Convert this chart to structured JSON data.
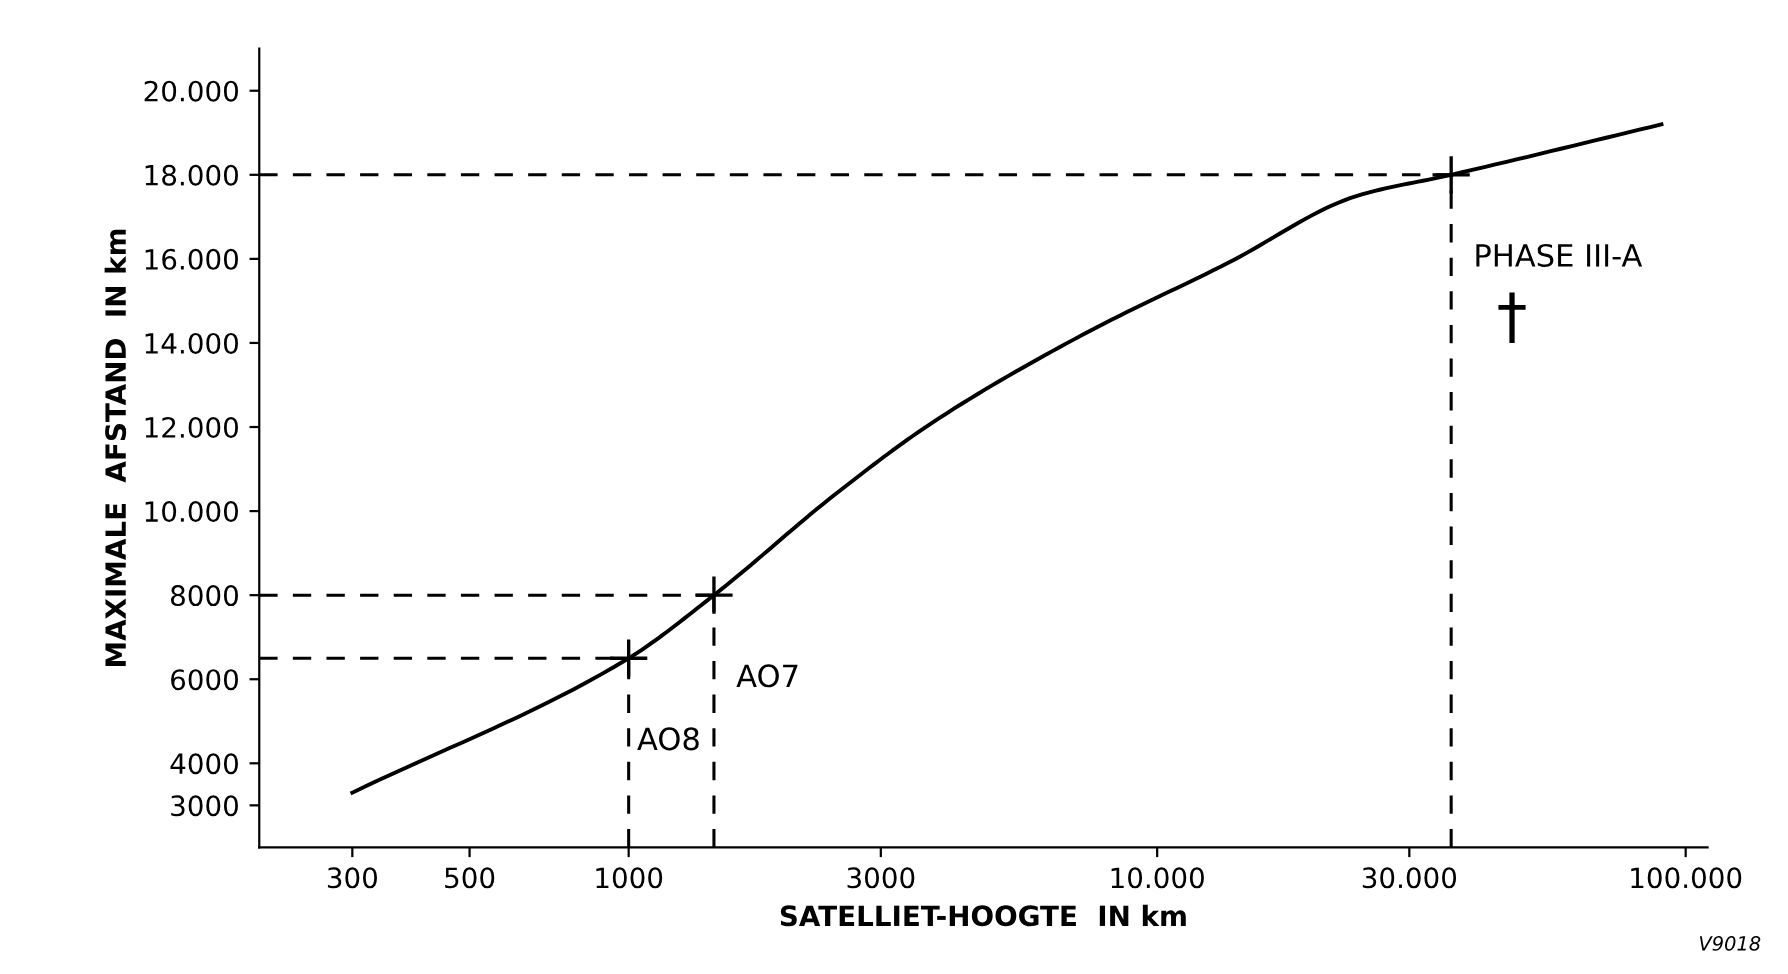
{
  "chart_data": {
    "type": "line",
    "xlabel": "SATELLIET-HOOGTE  IN km",
    "ylabel": "MAXIMALE  AFSTAND  IN km",
    "log": "x",
    "grid": false,
    "legend": false,
    "marker": "none",
    "line_style": "solid",
    "xlim": [
      200,
      110000
    ],
    "ylim": [
      2000,
      21000
    ],
    "xticks": [
      300,
      500,
      1000,
      3000,
      {
        "value": 10000,
        "label": "10.000"
      },
      {
        "value": 30000,
        "label": "30.000"
      },
      {
        "value": 100000,
        "label": "100.000"
      }
    ],
    "yticks": [
      3000,
      4000,
      6000,
      8000,
      {
        "value": 10000,
        "label": "10.000"
      },
      {
        "value": 12000,
        "label": "12.000"
      },
      {
        "value": 14000,
        "label": "14.000"
      },
      {
        "value": 16000,
        "label": "16.000"
      },
      {
        "value": 18000,
        "label": "18.000"
      },
      {
        "value": 20000,
        "label": "20.000"
      }
    ],
    "series": [
      {
        "color": "#000000",
        "x": [
          300,
          1000,
          1450,
          2460,
          3750,
          7240,
          13600,
          23900,
          36000,
          90000
        ],
        "values": [
          3300,
          6500,
          8000,
          10400,
          12100,
          14200,
          15900,
          17500,
          18000,
          19200
        ]
      },
      {
        "type": "scatter",
        "marker": "cross",
        "color": "#000000",
        "x": [
          1000,
          1450,
          36000
        ],
        "values": [
          6500,
          8000,
          18000
        ]
      }
    ],
    "ref_lines": [
      {
        "axis": "y",
        "value": 18000,
        "line_style": "dashed",
        "color": "#000000"
      },
      {
        "axis": "y",
        "value": 8000,
        "line_style": "dashed",
        "color": "#000000"
      },
      {
        "axis": "y",
        "value": 6500,
        "line_style": "dashed",
        "color": "#000000"
      },
      {
        "axis": "x",
        "value": 1000,
        "line_style": "dashed",
        "color": "#000000"
      },
      {
        "axis": "x",
        "value": 1450,
        "line_style": "dashed",
        "color": "#000000"
      },
      {
        "axis": "x",
        "value": 36000,
        "line_style": "dashed",
        "color": "#000000"
      }
    ],
    "annotations": [
      {
        "text": "AO8",
        "x": 1000,
        "y": 6500
      },
      {
        "text": "AO7",
        "x": 1450,
        "y": 8000
      },
      {
        "text": "PHASE III-A",
        "x": 36000,
        "y": 18000
      },
      "†",
      "V9018"
    ]
  }
}
